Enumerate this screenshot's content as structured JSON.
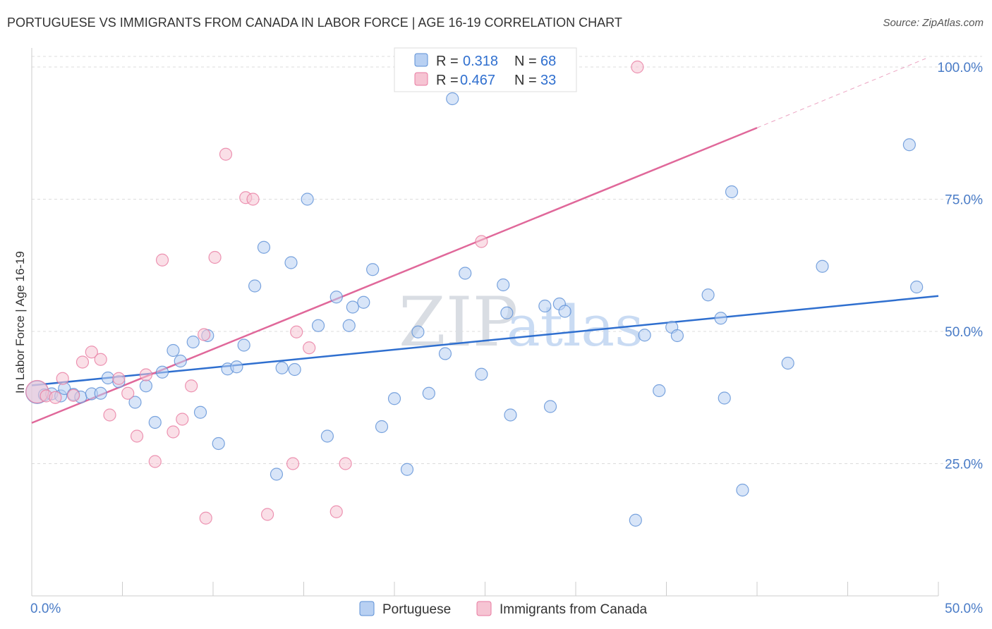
{
  "title": "PORTUGUESE VS IMMIGRANTS FROM CANADA IN LABOR FORCE | AGE 16-19 CORRELATION CHART",
  "source": "Source: ZipAtlas.com",
  "watermark": {
    "zip": "ZIP",
    "atlas": "atlas"
  },
  "colors": {
    "blue": "#5b8fd6",
    "blue_fill": "#b8d0f2",
    "pink": "#e87aa0",
    "pink_fill": "#f6c4d3",
    "blue_line": "#2f6fcf",
    "pink_line": "#e0689a",
    "label": "#4a7cc7"
  },
  "legend": {
    "r_label": "R =",
    "n_label": "N =",
    "rows": [
      {
        "r": "0.318",
        "n": "68"
      },
      {
        "r": "0.467",
        "n": "33"
      }
    ]
  },
  "bottom_legend": [
    "Portuguese",
    "Immigrants from Canada"
  ],
  "chart_data": {
    "type": "scatter",
    "title": "PORTUGUESE VS IMMIGRANTS FROM CANADA IN LABOR FORCE | AGE 16-19 CORRELATION CHART",
    "xlabel": "",
    "ylabel": "In Labor Force | Age 16-19",
    "xlim": [
      0,
      50
    ],
    "ylim": [
      0,
      102
    ],
    "x_tick_labels": [
      "0.0%",
      "50.0%"
    ],
    "y_ticks": [
      25,
      50,
      75,
      100
    ],
    "y_tick_labels": [
      "25.0%",
      "50.0%",
      "75.0%",
      "100.0%"
    ],
    "grid": true,
    "legend_position": "top-center",
    "series": [
      {
        "name": "Portuguese",
        "points": [
          [
            0.3,
            38.5
          ],
          [
            0.7,
            38.0
          ],
          [
            1.1,
            38.2
          ],
          [
            1.6,
            37.8
          ],
          [
            1.8,
            39.2
          ],
          [
            2.3,
            38.1
          ],
          [
            2.7,
            37.6
          ],
          [
            3.3,
            38.2
          ],
          [
            3.8,
            38.3
          ],
          [
            4.2,
            41.2
          ],
          [
            4.8,
            40.5
          ],
          [
            5.7,
            36.6
          ],
          [
            6.3,
            39.7
          ],
          [
            6.8,
            32.8
          ],
          [
            7.2,
            42.3
          ],
          [
            7.8,
            46.4
          ],
          [
            8.2,
            44.4
          ],
          [
            8.9,
            48.0
          ],
          [
            9.3,
            34.7
          ],
          [
            9.7,
            49.2
          ],
          [
            10.3,
            28.8
          ],
          [
            10.8,
            42.9
          ],
          [
            11.3,
            43.3
          ],
          [
            11.7,
            47.4
          ],
          [
            12.3,
            58.6
          ],
          [
            12.8,
            65.9
          ],
          [
            13.5,
            23.0
          ],
          [
            13.8,
            43.1
          ],
          [
            14.3,
            63.0
          ],
          [
            14.5,
            42.8
          ],
          [
            15.2,
            75.0
          ],
          [
            15.8,
            51.1
          ],
          [
            16.3,
            30.2
          ],
          [
            16.8,
            56.5
          ],
          [
            17.5,
            51.1
          ],
          [
            17.7,
            54.6
          ],
          [
            18.3,
            55.5
          ],
          [
            18.8,
            61.7
          ],
          [
            19.3,
            32.0
          ],
          [
            20.0,
            37.3
          ],
          [
            20.7,
            23.9
          ],
          [
            21.3,
            49.9
          ],
          [
            21.9,
            38.3
          ],
          [
            22.8,
            45.8
          ],
          [
            23.2,
            94.0
          ],
          [
            23.9,
            61.0
          ],
          [
            24.8,
            41.9
          ],
          [
            26.0,
            58.8
          ],
          [
            26.2,
            53.5
          ],
          [
            26.4,
            34.2
          ],
          [
            28.3,
            54.8
          ],
          [
            28.6,
            35.8
          ],
          [
            29.1,
            55.2
          ],
          [
            29.4,
            53.8
          ],
          [
            33.3,
            14.3
          ],
          [
            33.8,
            49.3
          ],
          [
            34.6,
            38.8
          ],
          [
            35.3,
            50.8
          ],
          [
            35.6,
            49.2
          ],
          [
            37.3,
            56.9
          ],
          [
            38.0,
            52.5
          ],
          [
            38.2,
            37.4
          ],
          [
            38.6,
            76.4
          ],
          [
            39.2,
            20.0
          ],
          [
            41.7,
            44.0
          ],
          [
            43.6,
            62.3
          ],
          [
            48.4,
            85.3
          ],
          [
            48.8,
            58.4
          ]
        ]
      },
      {
        "name": "Immigrants from Canada",
        "points": [
          [
            0.3,
            38.6
          ],
          [
            0.8,
            37.8
          ],
          [
            1.3,
            37.5
          ],
          [
            1.7,
            41.1
          ],
          [
            2.3,
            37.9
          ],
          [
            2.8,
            44.2
          ],
          [
            3.3,
            46.1
          ],
          [
            3.8,
            44.7
          ],
          [
            4.3,
            34.2
          ],
          [
            4.8,
            41.1
          ],
          [
            5.3,
            38.3
          ],
          [
            5.8,
            30.2
          ],
          [
            6.3,
            41.8
          ],
          [
            6.8,
            25.4
          ],
          [
            7.2,
            63.5
          ],
          [
            7.8,
            31.0
          ],
          [
            8.3,
            33.4
          ],
          [
            8.8,
            39.7
          ],
          [
            9.5,
            49.4
          ],
          [
            9.6,
            14.7
          ],
          [
            10.1,
            64.0
          ],
          [
            10.7,
            83.5
          ],
          [
            11.8,
            75.3
          ],
          [
            12.2,
            75.0
          ],
          [
            13.0,
            15.4
          ],
          [
            14.4,
            25.0
          ],
          [
            14.6,
            49.9
          ],
          [
            15.3,
            46.9
          ],
          [
            16.8,
            15.9
          ],
          [
            17.3,
            25.0
          ],
          [
            20.4,
            100.0
          ],
          [
            24.8,
            67.0
          ],
          [
            33.4,
            100.0
          ]
        ]
      }
    ],
    "trend_lines": [
      {
        "name": "Portuguese",
        "x": [
          0,
          50
        ],
        "y": [
          39.8,
          56.7
        ],
        "dashed_extension": false
      },
      {
        "name": "Immigrants from Canada",
        "x": [
          0,
          40
        ],
        "y": [
          32.7,
          88.5
        ],
        "dashed_to": [
          49.3,
          101.6
        ]
      }
    ]
  }
}
